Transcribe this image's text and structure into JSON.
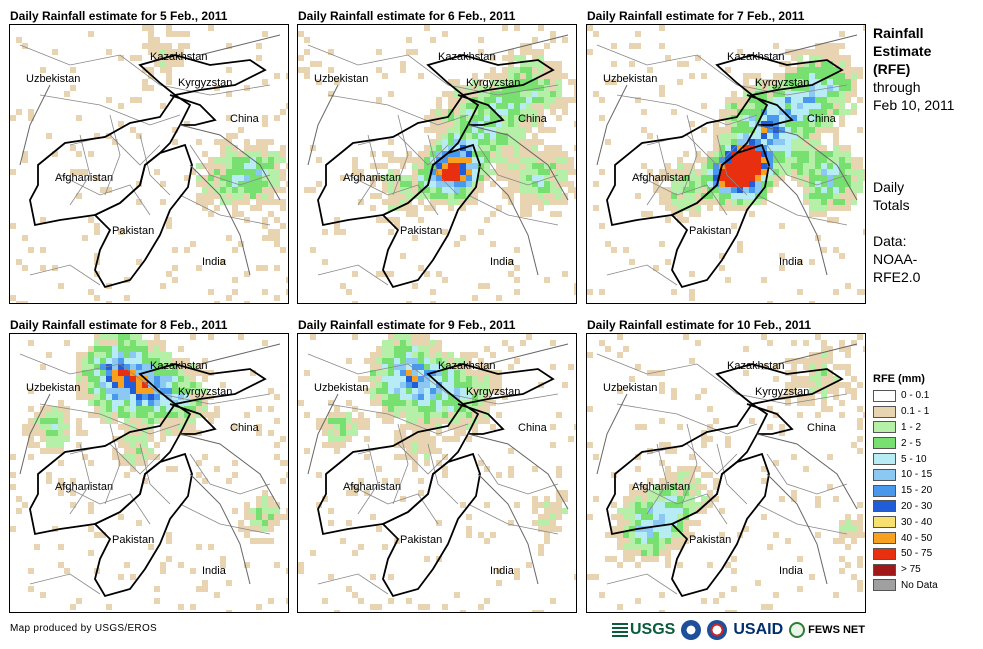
{
  "panels": [
    {
      "title": "Daily Rainfall estimate for 5 Feb., 2011",
      "intensity": 0.2,
      "center": "east"
    },
    {
      "title": "Daily Rainfall estimate for 6 Feb., 2011",
      "intensity": 0.55,
      "center": "ne"
    },
    {
      "title": "Daily Rainfall estimate for 7 Feb., 2011",
      "intensity": 1.0,
      "center": "ne"
    },
    {
      "title": "Daily Rainfall estimate for 8 Feb., 2011",
      "intensity": 0.55,
      "center": "north"
    },
    {
      "title": "Daily Rainfall estimate for 9 Feb., 2011",
      "intensity": 0.35,
      "center": "north"
    },
    {
      "title": "Daily Rainfall estimate for 10 Feb., 2011",
      "intensity": 0.35,
      "center": "sw"
    }
  ],
  "country_labels": {
    "kazakhstan": "Kazakhstan",
    "kyrgyzstan": "Kyrgyzstan",
    "uzbekistan": "Uzbekistan",
    "china": "China",
    "afghanistan": "Afghanistan",
    "pakistan": "Pakistan",
    "india": "India"
  },
  "side": {
    "title_line1": "Rainfall",
    "title_line2": "Estimate",
    "title_line3": "(RFE)",
    "through": "through",
    "date": "Feb 10, 2011",
    "totals_line1": "Daily",
    "totals_line2": "Totals",
    "data_line1": "Data:",
    "data_line2": "NOAA-",
    "data_line3": "RFE2.0"
  },
  "legend": {
    "title": "RFE (mm)",
    "items": [
      {
        "label": "0 - 0.1",
        "color": "#ffffff"
      },
      {
        "label": "0.1 - 1",
        "color": "#e8d4b0"
      },
      {
        "label": "1 - 2",
        "color": "#b6f0a8"
      },
      {
        "label": "2 - 5",
        "color": "#78e070"
      },
      {
        "label": "5 - 10",
        "color": "#b8ecf4"
      },
      {
        "label": "10 - 15",
        "color": "#8cc8f4"
      },
      {
        "label": "15 - 20",
        "color": "#4a98ec"
      },
      {
        "label": "20 - 30",
        "color": "#1f5ed8"
      },
      {
        "label": "30 - 40",
        "color": "#f8e070"
      },
      {
        "label": "40 - 50",
        "color": "#f8a020"
      },
      {
        "label": "50 - 75",
        "color": "#e83010"
      },
      {
        "label": "> 75",
        "color": "#a01818"
      },
      {
        "label": "No Data",
        "color": "#a0a0a0"
      }
    ]
  },
  "credit": "Map produced by USGS/EROS",
  "logos": {
    "usgs": "USGS",
    "usaid": "USAID",
    "fews": "FEWS NET"
  }
}
